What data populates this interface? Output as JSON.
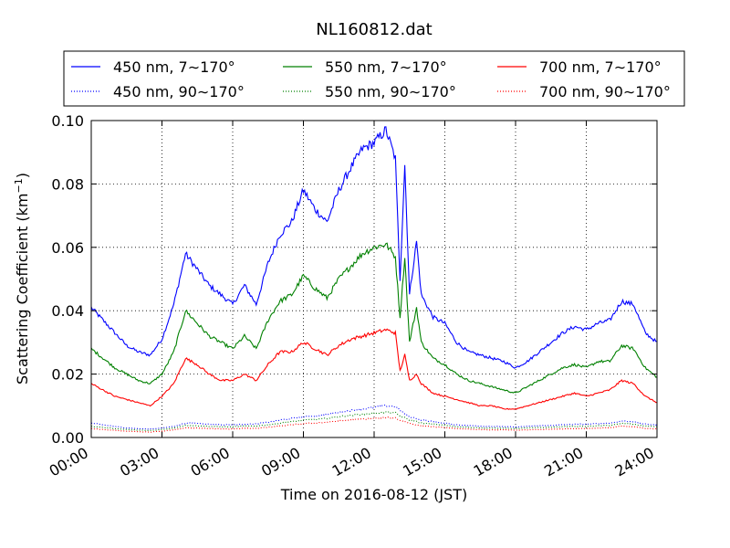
{
  "chart_data": {
    "type": "line",
    "title": "NL160812.dat",
    "xlabel": "Time on 2016-08-12 (JST)",
    "ylabel": "Scattering Coefficient (km",
    "ylabel_sup": "−1",
    "ylabel_close": ")",
    "xlim": [
      0,
      24
    ],
    "ylim": [
      0.0,
      0.1
    ],
    "grid": true,
    "legend_position": "top",
    "x_ticks": [
      {
        "value": 0,
        "label": "00:00"
      },
      {
        "value": 3,
        "label": "03:00"
      },
      {
        "value": 6,
        "label": "06:00"
      },
      {
        "value": 9,
        "label": "09:00"
      },
      {
        "value": 12,
        "label": "12:00"
      },
      {
        "value": 15,
        "label": "15:00"
      },
      {
        "value": 18,
        "label": "18:00"
      },
      {
        "value": 21,
        "label": "21:00"
      },
      {
        "value": 24,
        "label": "24:00"
      }
    ],
    "y_ticks": [
      {
        "value": 0.0,
        "label": "0.00"
      },
      {
        "value": 0.02,
        "label": "0.02"
      },
      {
        "value": 0.04,
        "label": "0.04"
      },
      {
        "value": 0.06,
        "label": "0.06"
      },
      {
        "value": 0.08,
        "label": "0.08"
      },
      {
        "value": 0.1,
        "label": "0.10"
      }
    ],
    "x": [
      0,
      0.5,
      1,
      1.5,
      2,
      2.5,
      3,
      3.5,
      4,
      4.5,
      5,
      5.5,
      6,
      6.5,
      7,
      7.5,
      8,
      8.5,
      9,
      9.5,
      10,
      10.5,
      11,
      11.5,
      12,
      12.5,
      12.9,
      13.1,
      13.3,
      13.5,
      13.8,
      14,
      14.5,
      15,
      15.5,
      16,
      16.5,
      17,
      17.5,
      18,
      18.5,
      19,
      19.5,
      20,
      20.5,
      21,
      21.5,
      22,
      22.5,
      23,
      23.5,
      24
    ],
    "series": [
      {
        "name": "450 nm, 7∼170°",
        "color": "#0000ff",
        "style": "solid",
        "values": [
          0.041,
          0.037,
          0.033,
          0.029,
          0.027,
          0.026,
          0.031,
          0.042,
          0.058,
          0.053,
          0.048,
          0.045,
          0.042,
          0.048,
          0.042,
          0.055,
          0.064,
          0.068,
          0.078,
          0.072,
          0.068,
          0.078,
          0.085,
          0.091,
          0.093,
          0.097,
          0.088,
          0.05,
          0.086,
          0.045,
          0.062,
          0.045,
          0.038,
          0.036,
          0.03,
          0.027,
          0.026,
          0.025,
          0.024,
          0.022,
          0.024,
          0.027,
          0.03,
          0.033,
          0.035,
          0.034,
          0.036,
          0.037,
          0.043,
          0.042,
          0.033,
          0.03
        ]
      },
      {
        "name": "550 nm, 7∼170°",
        "color": "#008000",
        "style": "solid",
        "values": [
          0.028,
          0.025,
          0.022,
          0.02,
          0.018,
          0.017,
          0.02,
          0.027,
          0.04,
          0.036,
          0.032,
          0.03,
          0.028,
          0.032,
          0.028,
          0.037,
          0.043,
          0.045,
          0.051,
          0.047,
          0.044,
          0.05,
          0.054,
          0.058,
          0.06,
          0.061,
          0.057,
          0.038,
          0.057,
          0.03,
          0.041,
          0.03,
          0.025,
          0.023,
          0.02,
          0.018,
          0.017,
          0.016,
          0.015,
          0.014,
          0.016,
          0.018,
          0.02,
          0.022,
          0.023,
          0.022,
          0.024,
          0.024,
          0.029,
          0.028,
          0.022,
          0.019
        ]
      },
      {
        "name": "700 nm, 7∼170°",
        "color": "#ff0000",
        "style": "solid",
        "values": [
          0.017,
          0.015,
          0.013,
          0.012,
          0.011,
          0.01,
          0.013,
          0.017,
          0.025,
          0.023,
          0.02,
          0.018,
          0.018,
          0.02,
          0.018,
          0.023,
          0.027,
          0.027,
          0.03,
          0.028,
          0.026,
          0.029,
          0.031,
          0.032,
          0.033,
          0.034,
          0.033,
          0.021,
          0.026,
          0.018,
          0.02,
          0.017,
          0.014,
          0.013,
          0.012,
          0.011,
          0.01,
          0.01,
          0.009,
          0.009,
          0.01,
          0.011,
          0.012,
          0.013,
          0.014,
          0.013,
          0.014,
          0.015,
          0.018,
          0.017,
          0.013,
          0.011
        ]
      },
      {
        "name": "450 nm, 90∼170°",
        "color": "#0000ff",
        "style": "dotted",
        "values": [
          0.0045,
          0.004,
          0.0035,
          0.003,
          0.0028,
          0.0027,
          0.003,
          0.0035,
          0.0045,
          0.0045,
          0.0042,
          0.004,
          0.004,
          0.0042,
          0.0043,
          0.0048,
          0.0055,
          0.006,
          0.0065,
          0.0068,
          0.0072,
          0.008,
          0.0085,
          0.009,
          0.0095,
          0.01,
          0.0098,
          0.0085,
          0.0075,
          0.0065,
          0.006,
          0.0055,
          0.005,
          0.0045,
          0.004,
          0.0038,
          0.0036,
          0.0035,
          0.0034,
          0.0033,
          0.0035,
          0.0037,
          0.0038,
          0.004,
          0.0042,
          0.0042,
          0.0044,
          0.0045,
          0.0052,
          0.005,
          0.0042,
          0.004
        ]
      },
      {
        "name": "550 nm, 90∼170°",
        "color": "#008000",
        "style": "dotted",
        "values": [
          0.0035,
          0.0032,
          0.0028,
          0.0025,
          0.0023,
          0.0022,
          0.0025,
          0.003,
          0.0038,
          0.0037,
          0.0035,
          0.0034,
          0.0034,
          0.0036,
          0.0036,
          0.004,
          0.0045,
          0.005,
          0.0055,
          0.0057,
          0.006,
          0.0066,
          0.007,
          0.0073,
          0.0076,
          0.008,
          0.0078,
          0.0068,
          0.0062,
          0.0055,
          0.005,
          0.0046,
          0.0042,
          0.0038,
          0.0034,
          0.0032,
          0.003,
          0.003,
          0.0029,
          0.0028,
          0.003,
          0.0031,
          0.0032,
          0.0034,
          0.0035,
          0.0035,
          0.0037,
          0.0038,
          0.0044,
          0.0042,
          0.0036,
          0.0034
        ]
      },
      {
        "name": "700 nm, 90∼170°",
        "color": "#ff0000",
        "style": "dotted",
        "values": [
          0.0028,
          0.0025,
          0.0022,
          0.002,
          0.0018,
          0.0017,
          0.002,
          0.0024,
          0.003,
          0.003,
          0.0028,
          0.0027,
          0.0027,
          0.0029,
          0.0029,
          0.0032,
          0.0036,
          0.004,
          0.0044,
          0.0046,
          0.0048,
          0.0052,
          0.0055,
          0.0058,
          0.006,
          0.0063,
          0.0062,
          0.0054,
          0.005,
          0.0045,
          0.004,
          0.0037,
          0.0034,
          0.0031,
          0.0028,
          0.0026,
          0.0025,
          0.0024,
          0.0024,
          0.0023,
          0.0024,
          0.0025,
          0.0026,
          0.0027,
          0.0028,
          0.0028,
          0.003,
          0.0031,
          0.0036,
          0.0034,
          0.0029,
          0.0027
        ]
      }
    ],
    "legend_order": [
      0,
      1,
      2,
      3,
      4,
      5
    ]
  }
}
